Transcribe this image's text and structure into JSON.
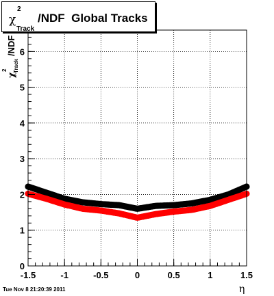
{
  "title": {
    "chi": "χ",
    "sup": "2",
    "sub": "Track",
    "main": "/NDF  Global Tracks"
  },
  "ylabel": {
    "chi": "χ",
    "sup": "2",
    "sub": "Track",
    "rest": "/NDF"
  },
  "timestamp": "Tue Nov  8 21:20:39 2011",
  "chart_data": {
    "type": "scatter",
    "title": "χ²_Track/NDF  Global Tracks",
    "xlabel": "η",
    "ylabel": "χ²_Track/NDF",
    "xlim": [
      -1.5,
      1.5
    ],
    "ylim": [
      0,
      6.6
    ],
    "grid": true,
    "xticks": [
      "-1.5",
      "-1",
      "-0.5",
      "0",
      "0.5",
      "1",
      "1.5"
    ],
    "yticks": [
      "0",
      "1",
      "2",
      "3",
      "4",
      "5",
      "6"
    ],
    "series": [
      {
        "color": "#000000",
        "x": [
          -1.5,
          -1.25,
          -1.0,
          -0.75,
          -0.5,
          -0.25,
          0.0,
          0.25,
          0.5,
          0.75,
          1.0,
          1.25,
          1.5
        ],
        "y": [
          2.22,
          2.05,
          1.88,
          1.78,
          1.73,
          1.7,
          1.6,
          1.68,
          1.7,
          1.75,
          1.85,
          2.0,
          2.22
        ]
      },
      {
        "color": "#ff0000",
        "x": [
          -1.5,
          -1.25,
          -1.0,
          -0.75,
          -0.5,
          -0.25,
          0.0,
          0.25,
          0.5,
          0.75,
          1.0,
          1.25,
          1.5
        ],
        "y": [
          2.02,
          1.88,
          1.72,
          1.6,
          1.55,
          1.47,
          1.35,
          1.45,
          1.52,
          1.57,
          1.68,
          1.85,
          2.02
        ]
      }
    ]
  }
}
